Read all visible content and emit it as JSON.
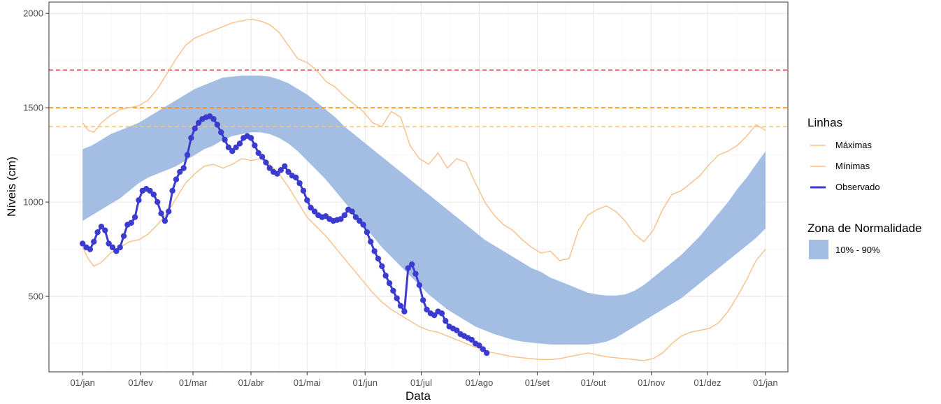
{
  "chart_data": {
    "type": "line",
    "xlabel": "Data",
    "ylabel": "Níveis (cm)",
    "ylim": [
      100,
      2060
    ],
    "xlim": [
      -18,
      377
    ],
    "grid": true,
    "legend_placement": "right",
    "x_ticks": [
      {
        "label": "01/jan",
        "day": 0
      },
      {
        "label": "01/fev",
        "day": 31
      },
      {
        "label": "01/mar",
        "day": 59
      },
      {
        "label": "01/abr",
        "day": 90
      },
      {
        "label": "01/mai",
        "day": 120
      },
      {
        "label": "01/jun",
        "day": 151
      },
      {
        "label": "01/jul",
        "day": 181
      },
      {
        "label": "01/ago",
        "day": 212
      },
      {
        "label": "01/set",
        "day": 243
      },
      {
        "label": "01/out",
        "day": 273
      },
      {
        "label": "01/nov",
        "day": 304
      },
      {
        "label": "01/dez",
        "day": 334
      },
      {
        "label": "01/jan",
        "day": 365
      }
    ],
    "y_ticks": [
      500,
      1000,
      1500,
      2000
    ],
    "reference_lines": [
      {
        "y": 1700,
        "color": "#e8545a"
      },
      {
        "y": 1500,
        "color": "#f08a1c"
      },
      {
        "y": 1400,
        "color": "#f3c96a"
      }
    ],
    "legend": {
      "lines_title": "Linhas",
      "zone_title": "Zona de Normalidade",
      "zone_label": "10% - 90%"
    },
    "band": {
      "name": "10% - 90%",
      "color": "#a3bde3",
      "x": [
        0,
        5,
        10,
        15,
        20,
        25,
        30,
        35,
        40,
        45,
        50,
        55,
        60,
        65,
        70,
        75,
        80,
        85,
        90,
        95,
        100,
        105,
        110,
        115,
        120,
        125,
        130,
        135,
        140,
        145,
        150,
        155,
        160,
        165,
        170,
        175,
        180,
        185,
        190,
        195,
        200,
        205,
        210,
        215,
        220,
        225,
        230,
        235,
        240,
        245,
        250,
        255,
        260,
        265,
        270,
        275,
        280,
        285,
        290,
        295,
        300,
        305,
        310,
        315,
        320,
        325,
        330,
        335,
        340,
        345,
        350,
        355,
        360,
        365
      ],
      "upper": [
        1280,
        1300,
        1330,
        1360,
        1380,
        1400,
        1420,
        1450,
        1480,
        1510,
        1540,
        1570,
        1600,
        1620,
        1640,
        1660,
        1665,
        1670,
        1670,
        1670,
        1665,
        1650,
        1630,
        1600,
        1570,
        1530,
        1490,
        1450,
        1400,
        1360,
        1320,
        1280,
        1240,
        1200,
        1160,
        1120,
        1080,
        1040,
        1000,
        960,
        920,
        880,
        840,
        800,
        770,
        740,
        710,
        680,
        650,
        630,
        600,
        580,
        560,
        540,
        520,
        510,
        505,
        505,
        510,
        530,
        560,
        600,
        640,
        680,
        720,
        770,
        820,
        880,
        940,
        1000,
        1070,
        1130,
        1200,
        1270
      ],
      "lower": [
        900,
        930,
        960,
        990,
        1020,
        1060,
        1100,
        1130,
        1150,
        1170,
        1190,
        1220,
        1250,
        1280,
        1300,
        1330,
        1350,
        1360,
        1370,
        1370,
        1360,
        1340,
        1310,
        1270,
        1220,
        1170,
        1120,
        1060,
        1000,
        940,
        880,
        820,
        760,
        710,
        660,
        610,
        560,
        510,
        470,
        430,
        400,
        370,
        340,
        320,
        300,
        285,
        270,
        260,
        255,
        250,
        245,
        245,
        245,
        245,
        245,
        250,
        260,
        280,
        310,
        340,
        370,
        400,
        430,
        460,
        490,
        530,
        570,
        610,
        650,
        690,
        730,
        770,
        810,
        860
      ]
    },
    "series": [
      {
        "name": "Máximas",
        "color": "#fbbf86",
        "x": [
          0,
          3,
          6,
          10,
          15,
          20,
          25,
          30,
          35,
          40,
          45,
          50,
          55,
          60,
          65,
          70,
          75,
          80,
          85,
          90,
          95,
          100,
          105,
          110,
          115,
          120,
          125,
          130,
          135,
          140,
          145,
          150,
          155,
          160,
          165,
          170,
          175,
          180,
          185,
          190,
          195,
          200,
          205,
          210,
          215,
          220,
          225,
          230,
          235,
          240,
          245,
          250,
          255,
          260,
          265,
          270,
          275,
          280,
          285,
          290,
          295,
          300,
          305,
          310,
          315,
          320,
          325,
          330,
          335,
          340,
          345,
          350,
          355,
          360,
          365
        ],
        "values": [
          1420,
          1380,
          1370,
          1420,
          1460,
          1490,
          1500,
          1510,
          1540,
          1600,
          1680,
          1760,
          1830,
          1870,
          1890,
          1910,
          1930,
          1950,
          1960,
          1970,
          1960,
          1940,
          1900,
          1830,
          1760,
          1740,
          1700,
          1640,
          1610,
          1560,
          1520,
          1480,
          1420,
          1400,
          1480,
          1450,
          1300,
          1230,
          1200,
          1260,
          1180,
          1230,
          1210,
          1100,
          1000,
          930,
          880,
          850,
          800,
          760,
          730,
          740,
          690,
          700,
          850,
          930,
          960,
          980,
          950,
          900,
          830,
          790,
          850,
          960,
          1040,
          1060,
          1100,
          1140,
          1200,
          1250,
          1270,
          1300,
          1350,
          1410,
          1380
        ]
      },
      {
        "name": "Mínimas",
        "color": "#fbbf86",
        "x": [
          0,
          3,
          6,
          10,
          15,
          20,
          25,
          30,
          35,
          40,
          45,
          50,
          55,
          60,
          65,
          70,
          75,
          80,
          85,
          90,
          95,
          100,
          105,
          110,
          115,
          120,
          125,
          130,
          135,
          140,
          145,
          150,
          155,
          160,
          165,
          170,
          175,
          180,
          185,
          190,
          195,
          200,
          205,
          210,
          215,
          220,
          225,
          230,
          235,
          240,
          245,
          250,
          255,
          260,
          265,
          270,
          275,
          280,
          285,
          290,
          295,
          300,
          305,
          310,
          315,
          320,
          325,
          330,
          335,
          340,
          345,
          350,
          355,
          360,
          365
        ],
        "values": [
          760,
          700,
          660,
          680,
          730,
          760,
          790,
          800,
          830,
          880,
          940,
          1020,
          1100,
          1150,
          1190,
          1200,
          1180,
          1200,
          1230,
          1220,
          1230,
          1200,
          1150,
          1080,
          1000,
          920,
          870,
          820,
          760,
          700,
          640,
          580,
          520,
          470,
          430,
          400,
          370,
          340,
          320,
          310,
          290,
          270,
          250,
          230,
          210,
          200,
          190,
          180,
          175,
          170,
          165,
          165,
          170,
          180,
          190,
          200,
          190,
          180,
          175,
          170,
          165,
          160,
          170,
          200,
          250,
          290,
          310,
          320,
          330,
          360,
          420,
          500,
          590,
          690,
          750
        ]
      },
      {
        "name": "Observado",
        "color": "#3b3bd0",
        "x": [
          0,
          2,
          4,
          6,
          8,
          10,
          12,
          14,
          16,
          18,
          20,
          22,
          24,
          26,
          28,
          30,
          32,
          34,
          36,
          38,
          40,
          42,
          44,
          46,
          48,
          50,
          52,
          54,
          56,
          58,
          60,
          62,
          64,
          66,
          68,
          70,
          72,
          74,
          76,
          78,
          80,
          82,
          84,
          86,
          88,
          90,
          92,
          94,
          96,
          98,
          100,
          102,
          104,
          106,
          108,
          110,
          112,
          114,
          116,
          118,
          120,
          122,
          124,
          126,
          128,
          130,
          132,
          134,
          136,
          138,
          140,
          142,
          144,
          146,
          148,
          150,
          152,
          154,
          156,
          158,
          160,
          162,
          164,
          166,
          168,
          170,
          172,
          174,
          176,
          178,
          180,
          182,
          184,
          186,
          188,
          190,
          192,
          194,
          196,
          198,
          200,
          202,
          204,
          206,
          208,
          210,
          212,
          214,
          216
        ],
        "values": [
          780,
          760,
          750,
          790,
          840,
          870,
          850,
          780,
          760,
          740,
          760,
          820,
          880,
          890,
          920,
          1010,
          1060,
          1070,
          1060,
          1040,
          1000,
          940,
          900,
          950,
          1060,
          1120,
          1160,
          1180,
          1250,
          1340,
          1390,
          1420,
          1440,
          1450,
          1455,
          1440,
          1410,
          1370,
          1330,
          1290,
          1270,
          1290,
          1310,
          1340,
          1350,
          1340,
          1300,
          1260,
          1240,
          1210,
          1180,
          1160,
          1150,
          1170,
          1190,
          1160,
          1140,
          1130,
          1100,
          1060,
          1010,
          970,
          950,
          930,
          920,
          925,
          910,
          900,
          905,
          910,
          930,
          960,
          950,
          920,
          900,
          880,
          840,
          790,
          740,
          700,
          660,
          610,
          570,
          530,
          490,
          450,
          420,
          650,
          670,
          620,
          560,
          480,
          430,
          410,
          400,
          420,
          410,
          370,
          340,
          330,
          320,
          300,
          290,
          280,
          270,
          250,
          240,
          220,
          200
        ]
      }
    ]
  }
}
